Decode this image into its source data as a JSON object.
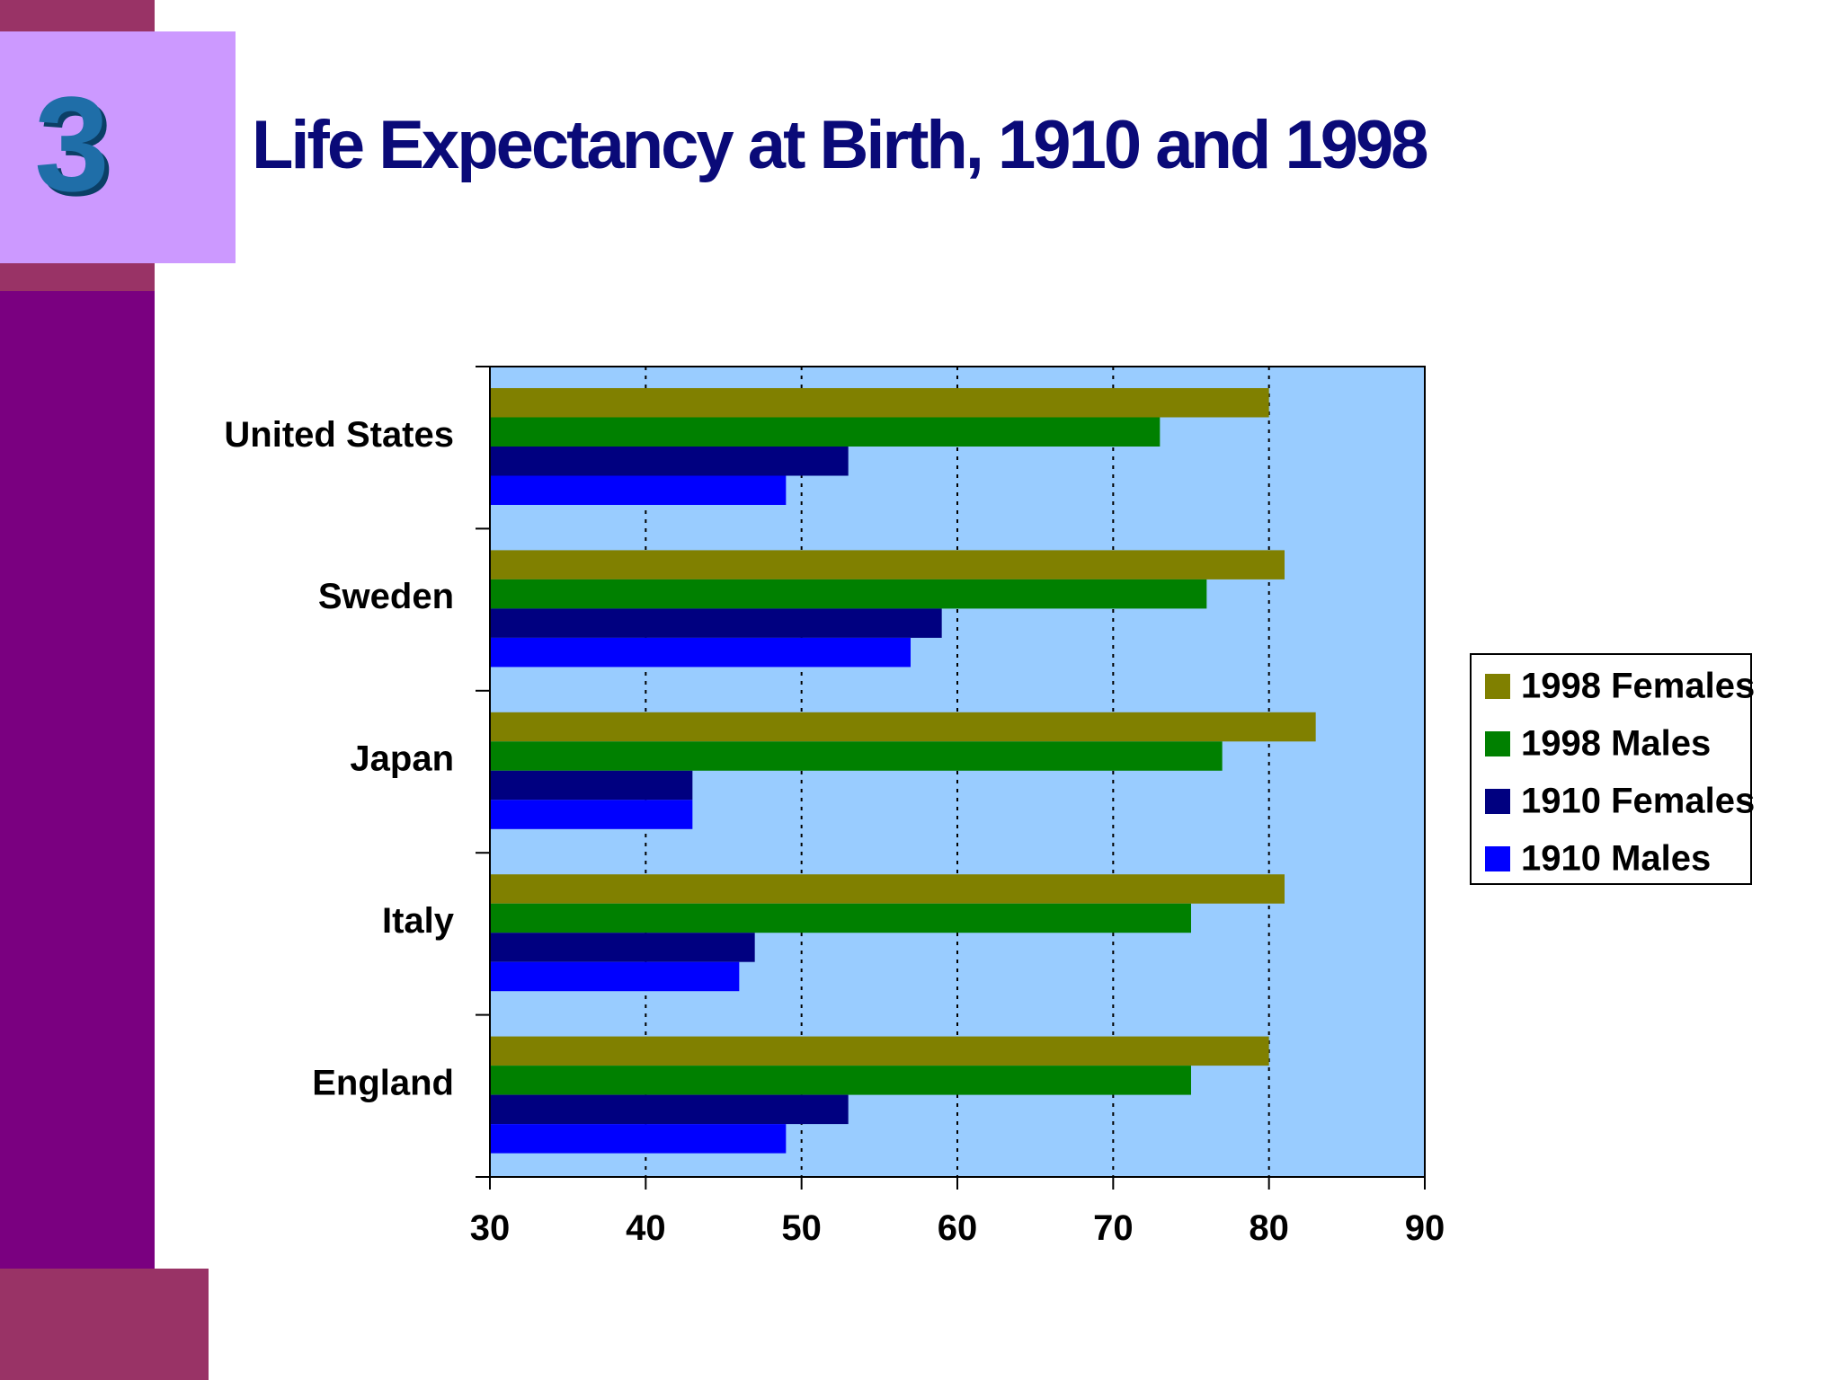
{
  "slide": {
    "number": "3",
    "title": "Life Expectancy at Birth, 1910 and 1998"
  },
  "colors": {
    "sidebar": "#7a0080",
    "accent_band": "#993366",
    "number_box": "#cc99ff",
    "number_text": "#1f6ea8",
    "title_text": "#0a0a78",
    "plot_background": "#99ccff"
  },
  "chart_data": {
    "type": "bar",
    "orientation": "horizontal",
    "categories": [
      "United States",
      "Sweden",
      "Japan",
      "Italy",
      "England"
    ],
    "series": [
      {
        "name": "1998 Females",
        "color": "#808000",
        "values": [
          80,
          81,
          83,
          81,
          80
        ]
      },
      {
        "name": "1998 Males",
        "color": "#008000",
        "values": [
          73,
          76,
          77,
          75,
          75
        ]
      },
      {
        "name": "1910 Females",
        "color": "#000080",
        "values": [
          53,
          59,
          43,
          47,
          53
        ]
      },
      {
        "name": "1910 Males",
        "color": "#0000ff",
        "values": [
          49,
          57,
          43,
          46,
          49
        ]
      }
    ],
    "xlim": [
      30,
      90
    ],
    "xticks": [
      30,
      40,
      50,
      60,
      70,
      80,
      90
    ],
    "grid": "vertical dotted",
    "legend": "right"
  }
}
